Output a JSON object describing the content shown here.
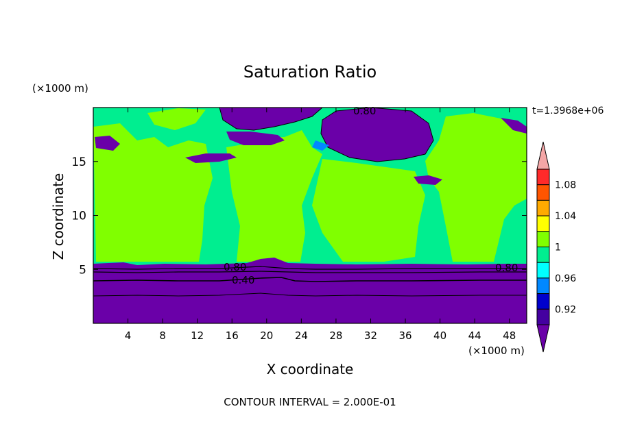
{
  "chart_data": {
    "type": "heatmap",
    "title": "Saturation Ratio",
    "xlabel": "X coordinate",
    "ylabel": "Z coordinate",
    "x_units": "(×1000 m)",
    "y_units": "(×1000 m)",
    "xlim": [
      0,
      50
    ],
    "ylim": [
      0,
      20
    ],
    "x_ticks": [
      "4",
      "8",
      "12",
      "16",
      "20",
      "24",
      "28",
      "32",
      "36",
      "40",
      "44",
      "48"
    ],
    "y_ticks": [
      "5",
      "10",
      "15"
    ],
    "time_label": "t=1.3968e+06",
    "footer": "CONTOUR INTERVAL = 2.000E-01",
    "contour_labels": [
      "0.80",
      "0.80",
      "0.40",
      "0.80"
    ],
    "colorbar": {
      "labels": [
        "1.08",
        "1.04",
        "1",
        "0.96",
        "0.92"
      ],
      "levels": [
        {
          "min": 1.1,
          "color": "#f4a6a6"
        },
        {
          "min": 1.08,
          "max": 1.1,
          "color": "#ff2a2a"
        },
        {
          "min": 1.06,
          "max": 1.08,
          "color": "#ff5500"
        },
        {
          "min": 1.04,
          "max": 1.06,
          "color": "#ffaa00"
        },
        {
          "min": 1.02,
          "max": 1.04,
          "color": "#ffff00"
        },
        {
          "min": 1.0,
          "max": 1.02,
          "color": "#80ff00"
        },
        {
          "min": 0.98,
          "max": 1.0,
          "color": "#00ee90"
        },
        {
          "min": 0.96,
          "max": 0.98,
          "color": "#00ffff"
        },
        {
          "min": 0.94,
          "max": 0.96,
          "color": "#0088ff"
        },
        {
          "min": 0.92,
          "max": 0.94,
          "color": "#0000cc"
        },
        {
          "min": 0.9,
          "max": 0.92,
          "color": "#4400a0"
        },
        {
          "max": 0.9,
          "color": "#6a00a8"
        }
      ]
    },
    "regions": {
      "lower_layer": {
        "value": "<0.90",
        "z_top": 5.5,
        "color": "#6a00a8"
      },
      "upper_field": {
        "value": "0.98-1.02",
        "colors": [
          "#00ee90",
          "#80ff00"
        ]
      },
      "dry_cells": {
        "value": "<0.90",
        "color": "#6a00a8"
      }
    }
  }
}
